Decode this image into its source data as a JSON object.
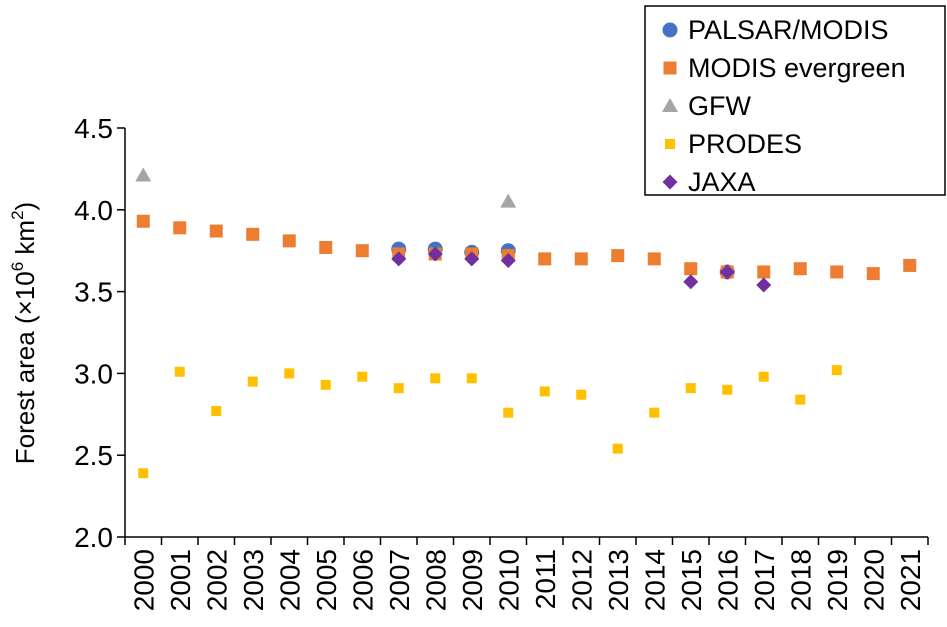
{
  "chart_data": {
    "type": "scatter",
    "ylabel_main": "Forest area (×10",
    "ylabel_sup1": "6",
    "ylabel_mid": " km",
    "ylabel_sup2": "2",
    "ylabel_end": ")",
    "ylim": [
      2.0,
      4.5
    ],
    "yticks": [
      "2.0",
      "2.5",
      "3.0",
      "3.5",
      "4.0",
      "4.5"
    ],
    "categories": [
      "2000",
      "2001",
      "2002",
      "2003",
      "2004",
      "2005",
      "2006",
      "2007",
      "2008",
      "2009",
      "2010",
      "2011",
      "2012",
      "2013",
      "2014",
      "2015",
      "2016",
      "2017",
      "2018",
      "2019",
      "2020",
      "2021"
    ],
    "grid": false,
    "legend_position": "top-right",
    "series": [
      {
        "name": "PALSAR/MODIS",
        "marker": "circle",
        "color": "#4472C4",
        "points": [
          [
            "2007",
            3.76
          ],
          [
            "2008",
            3.76
          ],
          [
            "2009",
            3.74
          ],
          [
            "2010",
            3.75
          ],
          [
            "2016",
            3.62
          ]
        ]
      },
      {
        "name": "MODIS evergreen",
        "marker": "square",
        "color": "#ED7D31",
        "points": [
          [
            "2000",
            3.93
          ],
          [
            "2001",
            3.89
          ],
          [
            "2002",
            3.87
          ],
          [
            "2003",
            3.85
          ],
          [
            "2004",
            3.81
          ],
          [
            "2005",
            3.77
          ],
          [
            "2006",
            3.75
          ],
          [
            "2007",
            3.73
          ],
          [
            "2008",
            3.73
          ],
          [
            "2009",
            3.73
          ],
          [
            "2010",
            3.72
          ],
          [
            "2011",
            3.7
          ],
          [
            "2012",
            3.7
          ],
          [
            "2013",
            3.72
          ],
          [
            "2014",
            3.7
          ],
          [
            "2015",
            3.64
          ],
          [
            "2016",
            3.62
          ],
          [
            "2017",
            3.62
          ],
          [
            "2018",
            3.64
          ],
          [
            "2019",
            3.62
          ],
          [
            "2020",
            3.61
          ],
          [
            "2021",
            3.66
          ]
        ]
      },
      {
        "name": "GFW",
        "marker": "triangle",
        "color": "#A5A5A5",
        "points": [
          [
            "2000",
            4.21
          ],
          [
            "2010",
            4.05
          ]
        ]
      },
      {
        "name": "PRODES",
        "marker": "small-square",
        "color": "#FFC000",
        "points": [
          [
            "2000",
            2.39
          ],
          [
            "2001",
            3.01
          ],
          [
            "2002",
            2.77
          ],
          [
            "2003",
            2.95
          ],
          [
            "2004",
            3.0
          ],
          [
            "2005",
            2.93
          ],
          [
            "2006",
            2.98
          ],
          [
            "2007",
            2.91
          ],
          [
            "2008",
            2.97
          ],
          [
            "2009",
            2.97
          ],
          [
            "2010",
            2.76
          ],
          [
            "2011",
            2.89
          ],
          [
            "2012",
            2.87
          ],
          [
            "2013",
            2.54
          ],
          [
            "2014",
            2.76
          ],
          [
            "2015",
            2.91
          ],
          [
            "2016",
            2.9
          ],
          [
            "2017",
            2.98
          ],
          [
            "2018",
            2.84
          ],
          [
            "2019",
            3.02
          ]
        ]
      },
      {
        "name": "JAXA",
        "marker": "diamond",
        "color": "#7030A0",
        "points": [
          [
            "2007",
            3.7
          ],
          [
            "2008",
            3.73
          ],
          [
            "2009",
            3.7
          ],
          [
            "2010",
            3.69
          ],
          [
            "2015",
            3.56
          ],
          [
            "2016",
            3.62
          ],
          [
            "2017",
            3.54
          ]
        ]
      }
    ]
  }
}
